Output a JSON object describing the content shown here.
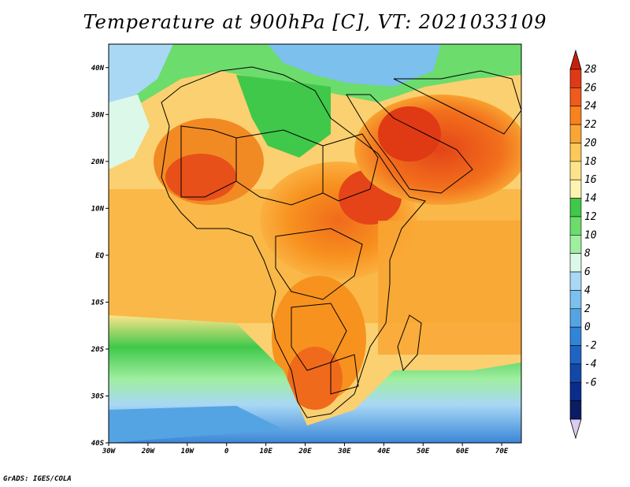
{
  "title": "Temperature at 900hPa [C], VT: 2021033109",
  "footer": "GrADS: IGES/COLA",
  "map": {
    "lon_range": [
      -30,
      75
    ],
    "lat_range": [
      -40,
      45
    ],
    "lon_ticks": [
      "30W",
      "20W",
      "10W",
      "0",
      "10E",
      "20E",
      "30E",
      "40E",
      "50E",
      "60E",
      "70E"
    ],
    "lat_ticks": [
      "40N",
      "30N",
      "20N",
      "10N",
      "EQ",
      "10S",
      "20S",
      "30S",
      "40S"
    ]
  },
  "colorbar": {
    "labels": [
      "28",
      "26",
      "24",
      "22",
      "20",
      "18",
      "16",
      "14",
      "12",
      "10",
      "8",
      "6",
      "4",
      "2",
      "0",
      "-2",
      "-4",
      "-6"
    ],
    "colors": [
      "#e03a14",
      "#f05a1c",
      "#f7821e",
      "#f9a634",
      "#fbc85a",
      "#fde48a",
      "#fff3b0",
      "#40c84a",
      "#6cdc6c",
      "#a0eea0",
      "#dcf8e8",
      "#a8d8f4",
      "#7cc0ee",
      "#54a4e4",
      "#3284d6",
      "#1e64c4",
      "#1448a8",
      "#0c2c8c",
      "#0a1c64"
    ],
    "top_arrow_color": "#c8200c",
    "bottom_arrow_color": "#d8ccf0"
  }
}
